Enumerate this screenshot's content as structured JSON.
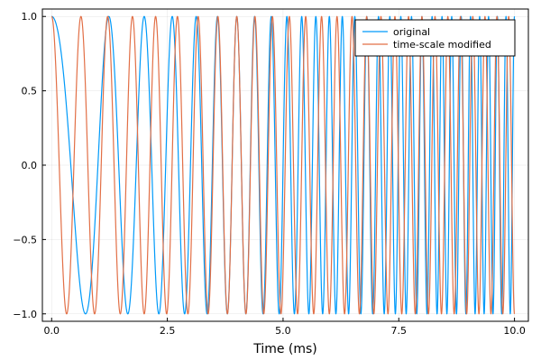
{
  "chart_data": {
    "type": "line",
    "title": "",
    "xlabel": "Time (ms)",
    "ylabel": "",
    "xlim": [
      -0.2,
      10.3
    ],
    "ylim": [
      -1.05,
      1.05
    ],
    "x_ticks": [
      0.0,
      2.5,
      5.0,
      7.5,
      10.0
    ],
    "x_tick_labels": [
      "0.0",
      "2.5",
      "5.0",
      "7.5",
      "10.0"
    ],
    "y_ticks": [
      -1.0,
      -0.5,
      0.0,
      0.5,
      1.0
    ],
    "y_tick_labels": [
      "−1.0",
      "−0.5",
      "0.0",
      "0.5",
      "1.0"
    ],
    "grid": true,
    "legend_position": "top-right",
    "series": [
      {
        "name": "original",
        "color": "#009af9",
        "function": "cos",
        "initial_frequency_khz": 0.5,
        "frequency_slope_khz_per_ms": 0.5,
        "x_range": [
          0.0,
          10.0
        ]
      },
      {
        "name": "time-scale modified",
        "color": "#e26f46",
        "function": "cos",
        "initial_frequency_khz": 1.5,
        "frequency_slope_khz_per_ms": 0.25,
        "x_range": [
          0.0,
          10.0
        ]
      }
    ]
  }
}
